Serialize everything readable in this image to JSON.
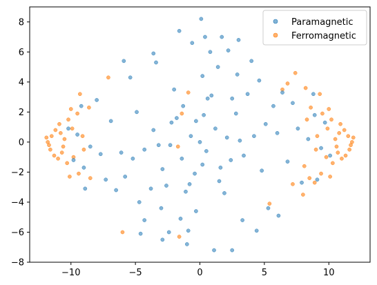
{
  "chart_data": {
    "type": "scatter",
    "title": "",
    "xlabel": "",
    "ylabel": "",
    "xlim": [
      -13.2,
      13.2
    ],
    "ylim": [
      -8,
      9
    ],
    "x_ticks": [
      -10,
      -5,
      0,
      5,
      10
    ],
    "x_tick_labels": [
      "−10",
      "−5",
      "0",
      "5",
      "10"
    ],
    "y_ticks": [
      -8,
      -6,
      -4,
      -2,
      0,
      2,
      4,
      6,
      8
    ],
    "y_tick_labels": [
      "−8",
      "−6",
      "−4",
      "−2",
      "0",
      "2",
      "4",
      "6",
      "8"
    ],
    "grid": false,
    "legend_position": "top-right",
    "legend": {
      "paramagnetic_label": "Paramagnetic",
      "ferromagnetic_label": "Ferromagnetic"
    },
    "series": [
      {
        "name": "Paramagnetic",
        "color": "#1f77b4",
        "alpha": 0.55,
        "points": [
          [
            0.0,
            0.0
          ],
          [
            0.5,
            -0.6
          ],
          [
            -0.7,
            0.4
          ],
          [
            1.2,
            0.9
          ],
          [
            -1.4,
            -1.1
          ],
          [
            2.1,
            0.3
          ],
          [
            -2.3,
            -0.2
          ],
          [
            0.3,
            1.8
          ],
          [
            -0.4,
            -2.1
          ],
          [
            1.6,
            -1.7
          ],
          [
            -1.8,
            1.6
          ],
          [
            2.8,
            1.9
          ],
          [
            -2.9,
            -1.8
          ],
          [
            3.4,
            -0.9
          ],
          [
            -3.6,
            0.8
          ],
          [
            0.9,
            3.1
          ],
          [
            -1.1,
            -3.3
          ],
          [
            4.2,
            0.4
          ],
          [
            -4.3,
            -0.5
          ],
          [
            2.5,
            2.9
          ],
          [
            -2.6,
            -2.9
          ],
          [
            1.9,
            -3.4
          ],
          [
            -2.0,
            3.5
          ],
          [
            5.1,
            1.2
          ],
          [
            -5.2,
            -1.1
          ],
          [
            4.8,
            -1.9
          ],
          [
            -4.9,
            2.0
          ],
          [
            0.2,
            4.4
          ],
          [
            -0.3,
            -4.6
          ],
          [
            3.7,
            3.2
          ],
          [
            -3.8,
            -3.1
          ],
          [
            6.0,
            0.6
          ],
          [
            -6.1,
            -0.7
          ],
          [
            5.7,
            2.4
          ],
          [
            -5.8,
            -2.3
          ],
          [
            1.4,
            5.0
          ],
          [
            -1.5,
            -5.1
          ],
          [
            6.8,
            -1.3
          ],
          [
            -6.9,
            1.4
          ],
          [
            2.9,
            4.5
          ],
          [
            -3.0,
            -4.4
          ],
          [
            7.6,
            0.9
          ],
          [
            -7.7,
            -0.8
          ],
          [
            7.2,
            2.6
          ],
          [
            -7.3,
            -2.5
          ],
          [
            0.8,
            6.0
          ],
          [
            -0.9,
            -5.9
          ],
          [
            8.4,
            0.2
          ],
          [
            -8.5,
            -0.3
          ],
          [
            4.6,
            4.1
          ],
          [
            -4.7,
            -4.0
          ],
          [
            8.9,
            1.8
          ],
          [
            -9.0,
            -1.7
          ],
          [
            3.3,
            -5.2
          ],
          [
            -3.4,
            5.3
          ],
          [
            9.4,
            -0.4
          ],
          [
            -9.5,
            0.5
          ],
          [
            6.4,
            3.3
          ],
          [
            -6.5,
            -3.2
          ],
          [
            0.4,
            7.0
          ],
          [
            -1.6,
            7.4
          ],
          [
            2.2,
            6.1
          ],
          [
            -2.4,
            -6.0
          ],
          [
            -1.0,
            -6.8
          ],
          [
            1.1,
            -7.2
          ],
          [
            2.5,
            -7.2
          ],
          [
            0.1,
            8.2
          ],
          [
            -0.6,
            6.6
          ],
          [
            1.7,
            7.0
          ],
          [
            -3.6,
            5.9
          ],
          [
            4.0,
            5.4
          ],
          [
            -4.3,
            -5.2
          ],
          [
            5.3,
            -4.4
          ],
          [
            -5.4,
            4.3
          ],
          [
            7.9,
            -2.7
          ],
          [
            -8.0,
            2.8
          ],
          [
            8.8,
            3.2
          ],
          [
            -8.9,
            -3.1
          ],
          [
            9.1,
            -2.5
          ],
          [
            -9.2,
            2.4
          ],
          [
            -9.8,
            -1.2
          ],
          [
            9.7,
            1.3
          ],
          [
            -10.2,
            0.9
          ],
          [
            10.1,
            -0.9
          ],
          [
            -4.6,
            -6.1
          ],
          [
            4.4,
            -5.9
          ],
          [
            -2.9,
            -6.5
          ],
          [
            3.0,
            6.8
          ],
          [
            -5.9,
            5.4
          ],
          [
            6.1,
            -4.9
          ],
          [
            -1.3,
            2.4
          ],
          [
            1.5,
            -2.6
          ],
          [
            0.6,
            2.9
          ],
          [
            -0.8,
            -2.8
          ],
          [
            2.4,
            -1.2
          ],
          [
            -2.2,
            1.3
          ],
          [
            3.1,
            0.1
          ],
          [
            -3.2,
            -0.2
          ],
          [
            0.2,
            -1.5
          ],
          [
            -0.3,
            1.4
          ]
        ]
      },
      {
        "name": "Ferromagnetic",
        "color": "#ff7f0e",
        "alpha": 0.6,
        "points": [
          [
            -11.8,
            0.0
          ],
          [
            -11.5,
            0.4
          ],
          [
            -11.6,
            -0.5
          ],
          [
            -11.2,
            0.8
          ],
          [
            -11.3,
            -0.9
          ],
          [
            -10.9,
            1.2
          ],
          [
            -11.0,
            -1.1
          ],
          [
            -10.5,
            0.2
          ],
          [
            -10.6,
            -0.3
          ],
          [
            -10.2,
            1.5
          ],
          [
            -10.3,
            -1.4
          ],
          [
            -11.9,
            0.3
          ],
          [
            -11.7,
            -0.2
          ],
          [
            -10.8,
            0.6
          ],
          [
            -10.7,
            -0.7
          ],
          [
            -9.9,
            0.9
          ],
          [
            -9.8,
            -1.0
          ],
          [
            -9.5,
            1.9
          ],
          [
            -9.4,
            -2.1
          ],
          [
            -9.1,
            0.4
          ],
          [
            -9.0,
            -0.5
          ],
          [
            -8.6,
            2.3
          ],
          [
            -8.5,
            -2.4
          ],
          [
            -10.0,
            2.2
          ],
          [
            -10.1,
            -2.3
          ],
          [
            -9.3,
            3.2
          ],
          [
            -7.1,
            4.3
          ],
          [
            -6.0,
            -6.0
          ],
          [
            -1.6,
            -6.3
          ],
          [
            -1.4,
            1.9
          ],
          [
            -1.7,
            -0.3
          ],
          [
            -0.9,
            3.3
          ],
          [
            11.8,
            0.0
          ],
          [
            11.5,
            0.4
          ],
          [
            11.6,
            -0.5
          ],
          [
            11.2,
            0.8
          ],
          [
            11.3,
            -0.9
          ],
          [
            10.9,
            1.2
          ],
          [
            11.0,
            -1.1
          ],
          [
            10.5,
            0.2
          ],
          [
            10.6,
            -0.3
          ],
          [
            10.2,
            1.5
          ],
          [
            10.3,
            -1.4
          ],
          [
            11.9,
            0.3
          ],
          [
            11.7,
            -0.2
          ],
          [
            10.8,
            0.6
          ],
          [
            10.7,
            -0.7
          ],
          [
            9.9,
            0.9
          ],
          [
            9.8,
            -1.0
          ],
          [
            9.5,
            1.9
          ],
          [
            9.4,
            -2.1
          ],
          [
            9.1,
            0.4
          ],
          [
            9.0,
            -0.5
          ],
          [
            8.6,
            2.3
          ],
          [
            8.5,
            -2.4
          ],
          [
            10.0,
            2.2
          ],
          [
            10.1,
            -2.3
          ],
          [
            9.3,
            3.2
          ],
          [
            8.2,
            3.6
          ],
          [
            7.4,
            4.6
          ],
          [
            8.0,
            -3.5
          ],
          [
            8.9,
            -2.7
          ],
          [
            8.1,
            -1.6
          ],
          [
            6.8,
            3.9
          ],
          [
            6.4,
            3.5
          ],
          [
            5.4,
            -4.1
          ],
          [
            7.2,
            -2.8
          ],
          [
            8.3,
            1.5
          ]
        ]
      }
    ]
  }
}
